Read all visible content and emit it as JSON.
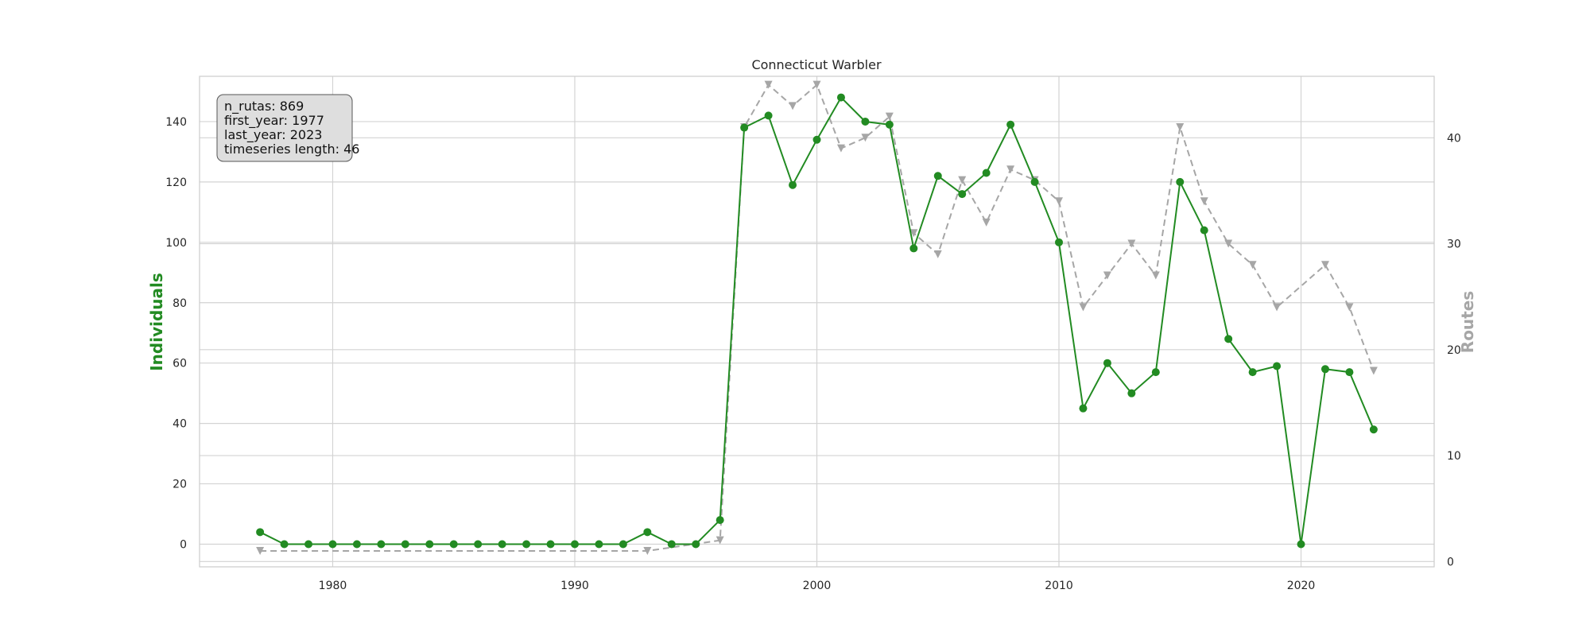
{
  "chart_data": {
    "type": "line",
    "title": "Connecticut Warbler",
    "xlabel": "",
    "ylabel": "Individuals",
    "y2label": "Routes",
    "xlim": [
      1974.5,
      2025.5
    ],
    "ylim": [
      -7.5,
      155
    ],
    "y2lim": [
      -0.5,
      45.8
    ],
    "xticks": [
      1980,
      1990,
      2000,
      2010,
      2020
    ],
    "yticks": [
      0,
      20,
      40,
      60,
      80,
      100,
      120,
      140
    ],
    "y2ticks": [
      0,
      10,
      20,
      30,
      40
    ],
    "grid": true,
    "colors": {
      "individuals": "#228b22",
      "routes": "#a6a6a6"
    },
    "info_box": [
      "n_rutas: 869",
      "first_year: 1977",
      "last_year: 2023",
      "timeseries length: 46"
    ],
    "series": [
      {
        "axis": "left",
        "style": "solid-circle",
        "x": [
          1977,
          1978,
          1979,
          1980,
          1981,
          1982,
          1983,
          1984,
          1985,
          1986,
          1987,
          1988,
          1989,
          1990,
          1991,
          1992,
          1993,
          1994,
          1995,
          1996,
          1997,
          1998,
          1999,
          2000,
          2001,
          2002,
          2003,
          2004,
          2005,
          2006,
          2007,
          2008,
          2009,
          2010,
          2011,
          2012,
          2013,
          2014,
          2015,
          2016,
          2017,
          2018,
          2019,
          2020,
          2021,
          2022,
          2023
        ],
        "values": [
          4,
          0,
          0,
          0,
          0,
          0,
          0,
          0,
          0,
          0,
          0,
          0,
          0,
          0,
          0,
          0,
          4,
          0,
          0,
          8,
          138,
          142,
          119,
          134,
          148,
          140,
          139,
          98,
          122,
          116,
          123,
          139,
          120,
          100,
          45,
          60,
          50,
          57,
          120,
          104,
          68,
          57,
          59,
          0,
          58,
          57,
          38
        ]
      },
      {
        "axis": "right",
        "style": "dashed-triangle",
        "x": [
          1977,
          1993,
          1996,
          1997,
          1998,
          1999,
          2000,
          2001,
          2002,
          2003,
          2004,
          2005,
          2006,
          2007,
          2008,
          2009,
          2010,
          2011,
          2012,
          2013,
          2014,
          2015,
          2016,
          2017,
          2018,
          2019,
          2021,
          2022,
          2023
        ],
        "values": [
          1,
          1,
          2,
          41,
          45,
          43,
          45,
          39,
          40,
          42,
          31,
          29,
          36,
          32,
          37,
          36,
          34,
          24,
          27,
          30,
          27,
          41,
          34,
          30,
          28,
          24,
          28,
          24,
          18
        ]
      }
    ]
  }
}
